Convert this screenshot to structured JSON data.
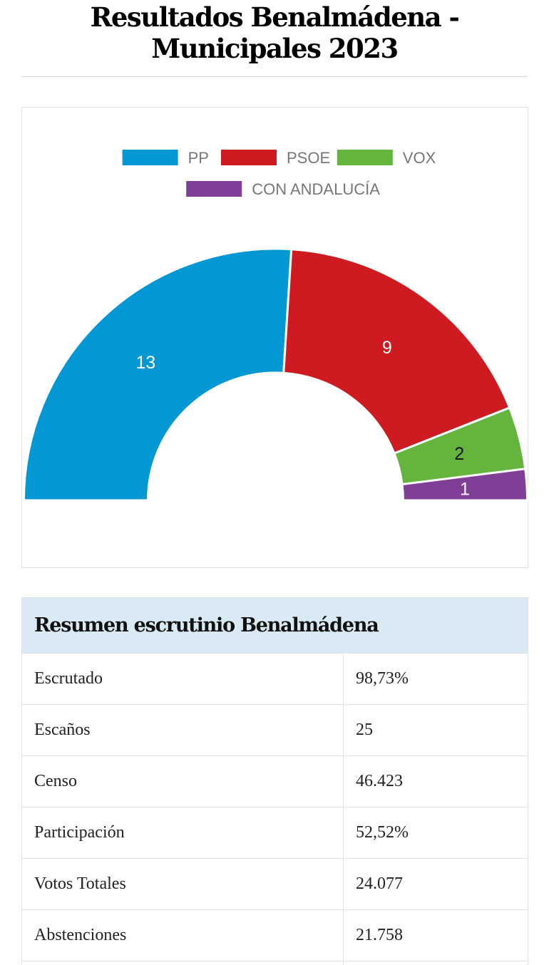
{
  "page": {
    "title_line1": "Resultados Benalmádena -",
    "title_line2": "Municipales 2023"
  },
  "chart_data": {
    "type": "pie",
    "variant": "parliament-semicircle",
    "title": "",
    "legend_position": "top-center",
    "categories": [
      "PP",
      "PSOE",
      "VOX",
      "CON ANDALUCÍA"
    ],
    "values": [
      13,
      9,
      2,
      1
    ],
    "colors": [
      "#0397d3",
      "#cd1b21",
      "#64b43e",
      "#803f97"
    ],
    "label_colors": [
      "#ffffff",
      "#ffffff",
      "#111111",
      "#ffffff"
    ],
    "total": 25
  },
  "summary": {
    "header": "Resumen escrutinio Benalmádena",
    "rows": [
      {
        "label": "Escrutado",
        "value": "98,73%"
      },
      {
        "label": "Escaños",
        "value": "25"
      },
      {
        "label": "Censo",
        "value": "46.423"
      },
      {
        "label": "Participación",
        "value": "52,52%"
      },
      {
        "label": "Votos Totales",
        "value": "24.077"
      },
      {
        "label": "Abstenciones",
        "value": "21.758"
      }
    ]
  }
}
